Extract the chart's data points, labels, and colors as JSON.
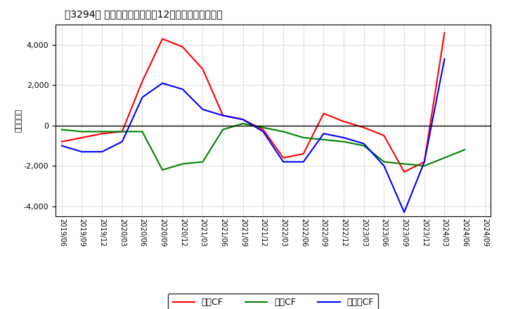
{
  "title": "［3294］ キャッシュフローの12か月移動合計の推移",
  "ylabel": "（百万円）",
  "x_labels": [
    "2019/06",
    "2019/09",
    "2019/12",
    "2020/03",
    "2020/06",
    "2020/09",
    "2020/12",
    "2021/03",
    "2021/06",
    "2021/09",
    "2021/12",
    "2022/03",
    "2022/06",
    "2022/09",
    "2022/12",
    "2023/03",
    "2023/06",
    "2023/09",
    "2023/12",
    "2024/03",
    "2024/06",
    "2024/09"
  ],
  "operating_cf": [
    -800,
    -600,
    -400,
    -300,
    2200,
    4300,
    3900,
    2800,
    500,
    300,
    -200,
    -1600,
    -1400,
    600,
    200,
    -100,
    -500,
    -2300,
    -1800,
    4600,
    null,
    null
  ],
  "investing_cf": [
    -200,
    -300,
    -300,
    -300,
    -300,
    -2200,
    -1900,
    -1800,
    -200,
    100,
    -100,
    -300,
    -600,
    -700,
    -800,
    -1000,
    -1800,
    -1900,
    -2000,
    -1600,
    -1200,
    null
  ],
  "free_cf": [
    -1000,
    -1300,
    -1300,
    -800,
    1400,
    2100,
    1800,
    800,
    500,
    300,
    -300,
    -1800,
    -1800,
    -400,
    -600,
    -900,
    -2000,
    -4300,
    -1800,
    3300,
    null,
    null
  ],
  "operating_color": "#ff0000",
  "investing_color": "#008000",
  "free_color": "#0000ff",
  "background_color": "#ffffff",
  "grid_color": "#999999",
  "ylim": [
    -4500,
    5000
  ],
  "yticks": [
    -4000,
    -2000,
    0,
    2000,
    4000
  ],
  "legend_labels": [
    "営業CF",
    "投資CF",
    "フリーCF"
  ]
}
